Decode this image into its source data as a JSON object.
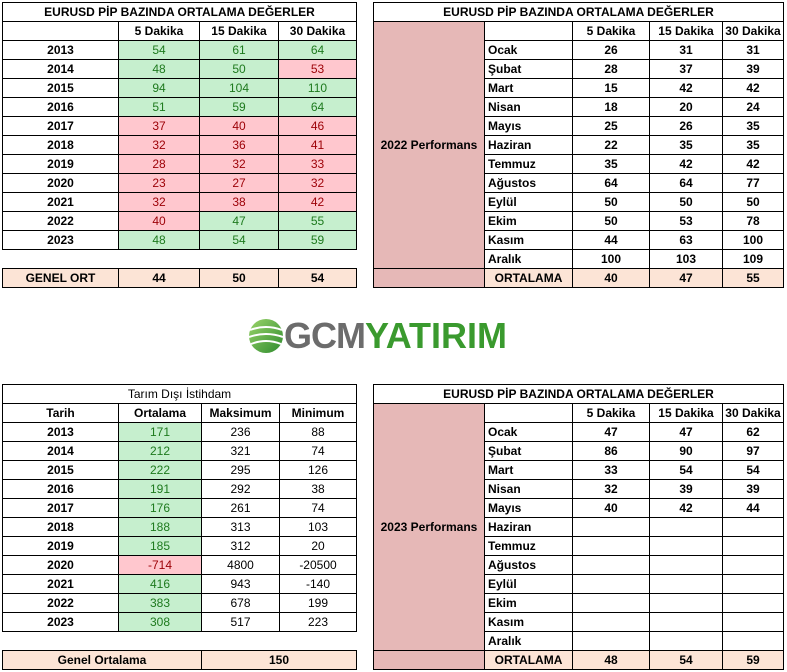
{
  "top_left": {
    "title": "EURUSD  PİP BAZINDA ORTALAMA DEĞERLER",
    "headers": [
      "",
      "5 Dakika",
      "15 Dakika",
      "30 Dakika"
    ],
    "rows": [
      {
        "year": "2013",
        "v": [
          "54",
          "61",
          "64"
        ],
        "c": [
          "g",
          "g",
          "g"
        ]
      },
      {
        "year": "2014",
        "v": [
          "48",
          "50",
          "53"
        ],
        "c": [
          "g",
          "g",
          "r"
        ]
      },
      {
        "year": "2015",
        "v": [
          "94",
          "104",
          "110"
        ],
        "c": [
          "g",
          "g",
          "g"
        ]
      },
      {
        "year": "2016",
        "v": [
          "51",
          "59",
          "64"
        ],
        "c": [
          "g",
          "g",
          "g"
        ]
      },
      {
        "year": "2017",
        "v": [
          "37",
          "40",
          "46"
        ],
        "c": [
          "r",
          "r",
          "r"
        ]
      },
      {
        "year": "2018",
        "v": [
          "32",
          "36",
          "41"
        ],
        "c": [
          "r",
          "r",
          "r"
        ]
      },
      {
        "year": "2019",
        "v": [
          "28",
          "32",
          "33"
        ],
        "c": [
          "r",
          "r",
          "r"
        ]
      },
      {
        "year": "2020",
        "v": [
          "23",
          "27",
          "32"
        ],
        "c": [
          "r",
          "r",
          "r"
        ]
      },
      {
        "year": "2021",
        "v": [
          "32",
          "38",
          "42"
        ],
        "c": [
          "r",
          "r",
          "r"
        ]
      },
      {
        "year": "2022",
        "v": [
          "40",
          "47",
          "55"
        ],
        "c": [
          "r",
          "g",
          "g"
        ]
      },
      {
        "year": "2023",
        "v": [
          "48",
          "54",
          "59"
        ],
        "c": [
          "g",
          "g",
          "g"
        ]
      }
    ],
    "summary": {
      "label": "GENEL ORT",
      "v": [
        "44",
        "50",
        "54"
      ]
    }
  },
  "top_right": {
    "title": "EURUSD  PİP BAZINDA ORTALAMA DEĞERLER",
    "headers": [
      "5 Dakika",
      "15 Dakika",
      "30 Dakika"
    ],
    "side_label": "2022 Performans",
    "rows": [
      {
        "month": "Ocak",
        "v": [
          "26",
          "31",
          "31"
        ]
      },
      {
        "month": "Şubat",
        "v": [
          "28",
          "37",
          "39"
        ]
      },
      {
        "month": "Mart",
        "v": [
          "15",
          "42",
          "42"
        ]
      },
      {
        "month": "Nisan",
        "v": [
          "18",
          "20",
          "24"
        ]
      },
      {
        "month": "Mayıs",
        "v": [
          "25",
          "26",
          "35"
        ]
      },
      {
        "month": "Haziran",
        "v": [
          "22",
          "35",
          "35"
        ]
      },
      {
        "month": "Temmuz",
        "v": [
          "35",
          "42",
          "42"
        ]
      },
      {
        "month": "Ağustos",
        "v": [
          "64",
          "64",
          "77"
        ]
      },
      {
        "month": "Eylül",
        "v": [
          "50",
          "50",
          "50"
        ]
      },
      {
        "month": "Ekim",
        "v": [
          "50",
          "53",
          "78"
        ]
      },
      {
        "month": "Kasım",
        "v": [
          "44",
          "63",
          "100"
        ]
      },
      {
        "month": "Aralık",
        "v": [
          "100",
          "103",
          "109"
        ]
      }
    ],
    "summary": {
      "label": "ORTALAMA",
      "v": [
        "40",
        "47",
        "55"
      ]
    }
  },
  "logo": {
    "part1": "GCM",
    "part2": "YATIRIM",
    "brand_color": "#3a9a2e",
    "gray_color": "#6c6c6c"
  },
  "bottom_left": {
    "title": "Tarım Dışı İstihdam",
    "headers": [
      "Tarih",
      "Ortalama",
      "Maksimum",
      "Minimum"
    ],
    "rows": [
      {
        "year": "2013",
        "avg": "171",
        "max": "236",
        "min": "88",
        "c": "g"
      },
      {
        "year": "2014",
        "avg": "212",
        "max": "321",
        "min": "74",
        "c": "g"
      },
      {
        "year": "2015",
        "avg": "222",
        "max": "295",
        "min": "126",
        "c": "g"
      },
      {
        "year": "2016",
        "avg": "191",
        "max": "292",
        "min": "38",
        "c": "g"
      },
      {
        "year": "2017",
        "avg": "176",
        "max": "261",
        "min": "74",
        "c": "g"
      },
      {
        "year": "2018",
        "avg": "188",
        "max": "313",
        "min": "103",
        "c": "g"
      },
      {
        "year": "2019",
        "avg": "185",
        "max": "312",
        "min": "20",
        "c": "g"
      },
      {
        "year": "2020",
        "avg": "-714",
        "max": "4800",
        "min": "-20500",
        "c": "r"
      },
      {
        "year": "2021",
        "avg": "416",
        "max": "943",
        "min": "-140",
        "c": "g"
      },
      {
        "year": "2022",
        "avg": "383",
        "max": "678",
        "min": "199",
        "c": "g"
      },
      {
        "year": "2023",
        "avg": "308",
        "max": "517",
        "min": "223",
        "c": "g"
      }
    ],
    "summary": {
      "label": "Genel Ortalama",
      "value": "150"
    }
  },
  "bottom_right": {
    "title": "EURUSD  PİP BAZINDA ORTALAMA DEĞERLER",
    "headers": [
      "5 Dakika",
      "15 Dakika",
      "30 Dakika"
    ],
    "side_label": "2023 Performans",
    "rows": [
      {
        "month": "Ocak",
        "v": [
          "47",
          "47",
          "62"
        ]
      },
      {
        "month": "Şubat",
        "v": [
          "86",
          "90",
          "97"
        ]
      },
      {
        "month": "Mart",
        "v": [
          "33",
          "54",
          "54"
        ]
      },
      {
        "month": "Nisan",
        "v": [
          "32",
          "39",
          "39"
        ]
      },
      {
        "month": "Mayıs",
        "v": [
          "40",
          "42",
          "44"
        ]
      },
      {
        "month": "Haziran",
        "v": [
          "",
          "",
          ""
        ]
      },
      {
        "month": "Temmuz",
        "v": [
          "",
          "",
          ""
        ]
      },
      {
        "month": "Ağustos",
        "v": [
          "",
          "",
          ""
        ]
      },
      {
        "month": "Eylül",
        "v": [
          "",
          "",
          ""
        ]
      },
      {
        "month": "Ekim",
        "v": [
          "",
          "",
          ""
        ]
      },
      {
        "month": "Kasım",
        "v": [
          "",
          "",
          ""
        ]
      },
      {
        "month": "Aralık",
        "v": [
          "",
          "",
          ""
        ]
      }
    ],
    "summary": {
      "label": "ORTALAMA",
      "v": [
        "48",
        "54",
        "59"
      ]
    }
  }
}
